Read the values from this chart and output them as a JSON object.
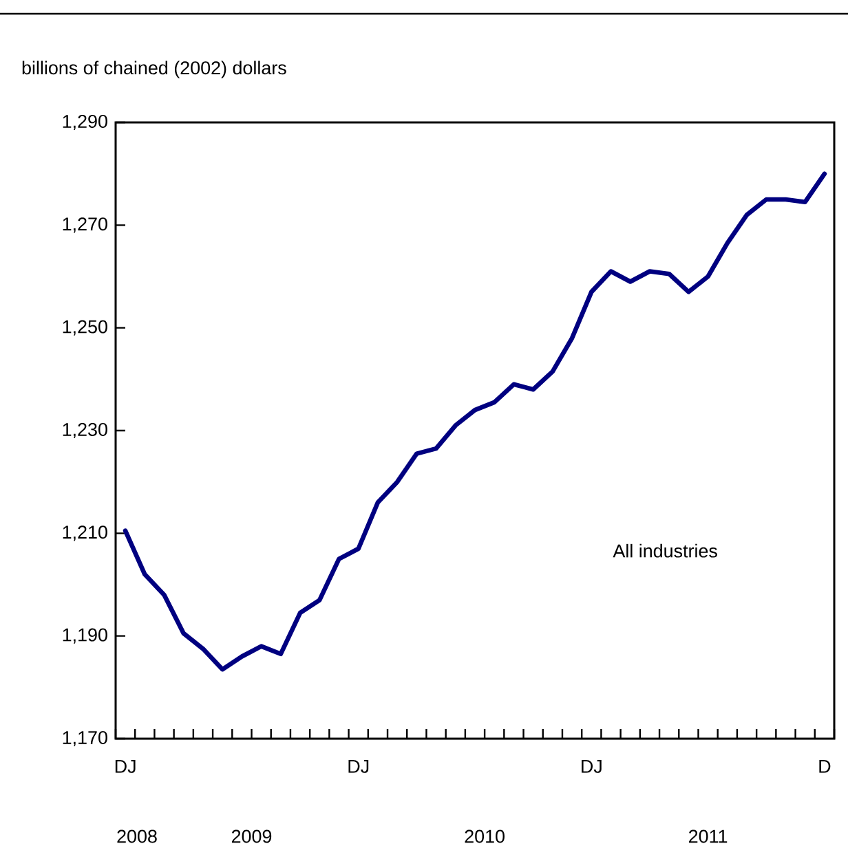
{
  "chart_data": {
    "type": "line",
    "ylabel": "billions of chained (2002) dollars",
    "categories": [
      "DJ",
      null,
      null,
      null,
      null,
      null,
      null,
      null,
      null,
      null,
      null,
      null,
      "DJ",
      null,
      null,
      null,
      null,
      null,
      null,
      null,
      null,
      null,
      null,
      null,
      "DJ",
      null,
      null,
      null,
      null,
      null,
      null,
      null,
      null,
      null,
      null,
      null,
      "D"
    ],
    "series": [
      {
        "name": "All industries",
        "color": "#000080",
        "values": [
          1210.5,
          1202,
          1198,
          1190.5,
          1187.5,
          1183.5,
          1186,
          1188,
          1186.5,
          1194.5,
          1197,
          1205,
          1207,
          1216,
          1220,
          1225.5,
          1226.5,
          1231,
          1234,
          1235.5,
          1239,
          1238,
          1241.5,
          1248,
          1257,
          1261,
          1259,
          1261,
          1260.5,
          1257,
          1260,
          1266.5,
          1272,
          1275,
          1275,
          1274.5,
          1280
        ]
      }
    ],
    "ylim": [
      1170,
      1290
    ],
    "yticks": [
      {
        "value": 1170,
        "label": "1,170"
      },
      {
        "value": 1190,
        "label": "1,190"
      },
      {
        "value": 1210,
        "label": "1,210"
      },
      {
        "value": 1230,
        "label": "1,230"
      },
      {
        "value": 1250,
        "label": "1,250"
      },
      {
        "value": 1270,
        "label": "1,270"
      },
      {
        "value": 1290,
        "label": "1,290"
      }
    ],
    "annotations": [
      "2008",
      "2009",
      "2010",
      "2011"
    ]
  }
}
